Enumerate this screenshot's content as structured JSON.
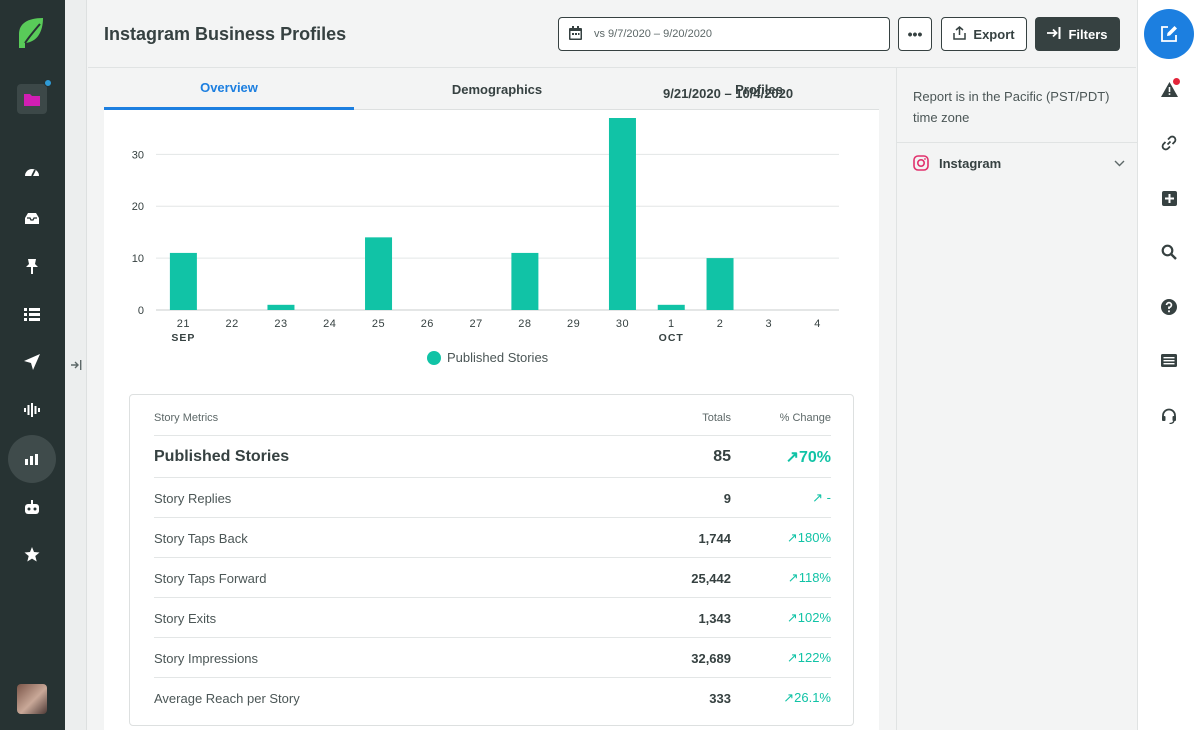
{
  "app": {
    "colors": {
      "nav_bg": "#273333",
      "accent": "#1c7fe0",
      "teal": "#11c3a6",
      "logo_green": "#59cb59",
      "folder_pink": "#d21eb4",
      "alert_red": "#e3253a"
    }
  },
  "header": {
    "title": "Instagram Business Profiles",
    "date_range": "9/21/2020 – 10/4/2020",
    "vs_label": "vs 9/7/2020 – 9/20/2020",
    "more_label": "•••",
    "export_label": "Export",
    "filters_label": "Filters"
  },
  "tabs": [
    {
      "label": "Overview",
      "active": true
    },
    {
      "label": "Demographics",
      "active": false
    },
    {
      "label": "Profiles",
      "active": false
    }
  ],
  "side_panel": {
    "timezone_note": "Report is in the Pacific (PST/PDT) time zone",
    "network_label": "Instagram"
  },
  "chart_data": {
    "type": "bar",
    "categories": [
      "21",
      "22",
      "23",
      "24",
      "25",
      "26",
      "27",
      "28",
      "29",
      "30",
      "1",
      "2",
      "3",
      "4"
    ],
    "month_labels": [
      {
        "index": 0,
        "label": "SEP"
      },
      {
        "index": 10,
        "label": "OCT"
      }
    ],
    "series": [
      {
        "name": "Published Stories",
        "color": "#11c3a6",
        "values": [
          11,
          0,
          1,
          0,
          14,
          0,
          0,
          11,
          0,
          37,
          1,
          10,
          0,
          0
        ]
      }
    ],
    "yticks": [
      0,
      10,
      20,
      30
    ],
    "ylim": [
      0,
      37
    ],
    "legend": "bottom-center",
    "grid": true
  },
  "metrics": {
    "headers": {
      "name": "Story Metrics",
      "total": "Totals",
      "change": "% Change"
    },
    "rows": [
      {
        "name": "Published Stories",
        "total": "85",
        "change": "70%"
      },
      {
        "name": "Story Replies",
        "total": "9",
        "change": "-"
      },
      {
        "name": "Story Taps Back",
        "total": "1,744",
        "change": "180%"
      },
      {
        "name": "Story Taps Forward",
        "total": "25,442",
        "change": "118%"
      },
      {
        "name": "Story Exits",
        "total": "1,343",
        "change": "102%"
      },
      {
        "name": "Story Impressions",
        "total": "32,689",
        "change": "122%"
      },
      {
        "name": "Average Reach per Story",
        "total": "333",
        "change": "26.1%"
      }
    ]
  }
}
